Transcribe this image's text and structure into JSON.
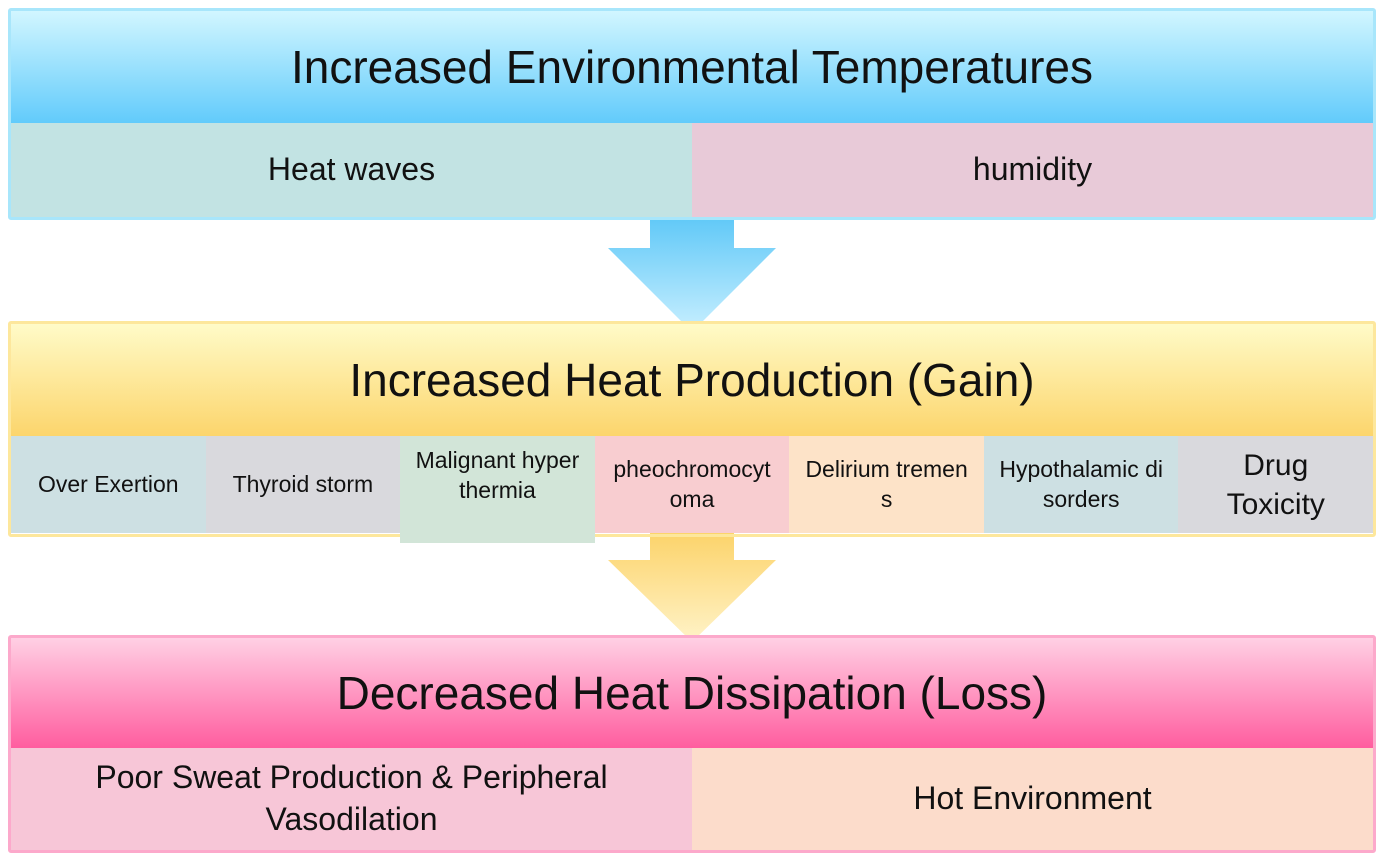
{
  "blocks": [
    {
      "title": "Increased Environmental Temperatures",
      "items": [
        "Heat waves",
        "humidity"
      ]
    },
    {
      "title": "Increased Heat Production (Gain)",
      "items": [
        "Over Exertion",
        "Thyroid storm",
        "Malignant hyperthermia",
        "pheochromocytoma",
        "Delirium tremens",
        "Hypothalamic disorders",
        "Drug Toxicity"
      ]
    },
    {
      "title": "Decreased Heat Dissipation (Loss)",
      "items": [
        "Poor Sweat Production & Peripheral Vasodilation",
        "Hot Environment"
      ]
    }
  ]
}
